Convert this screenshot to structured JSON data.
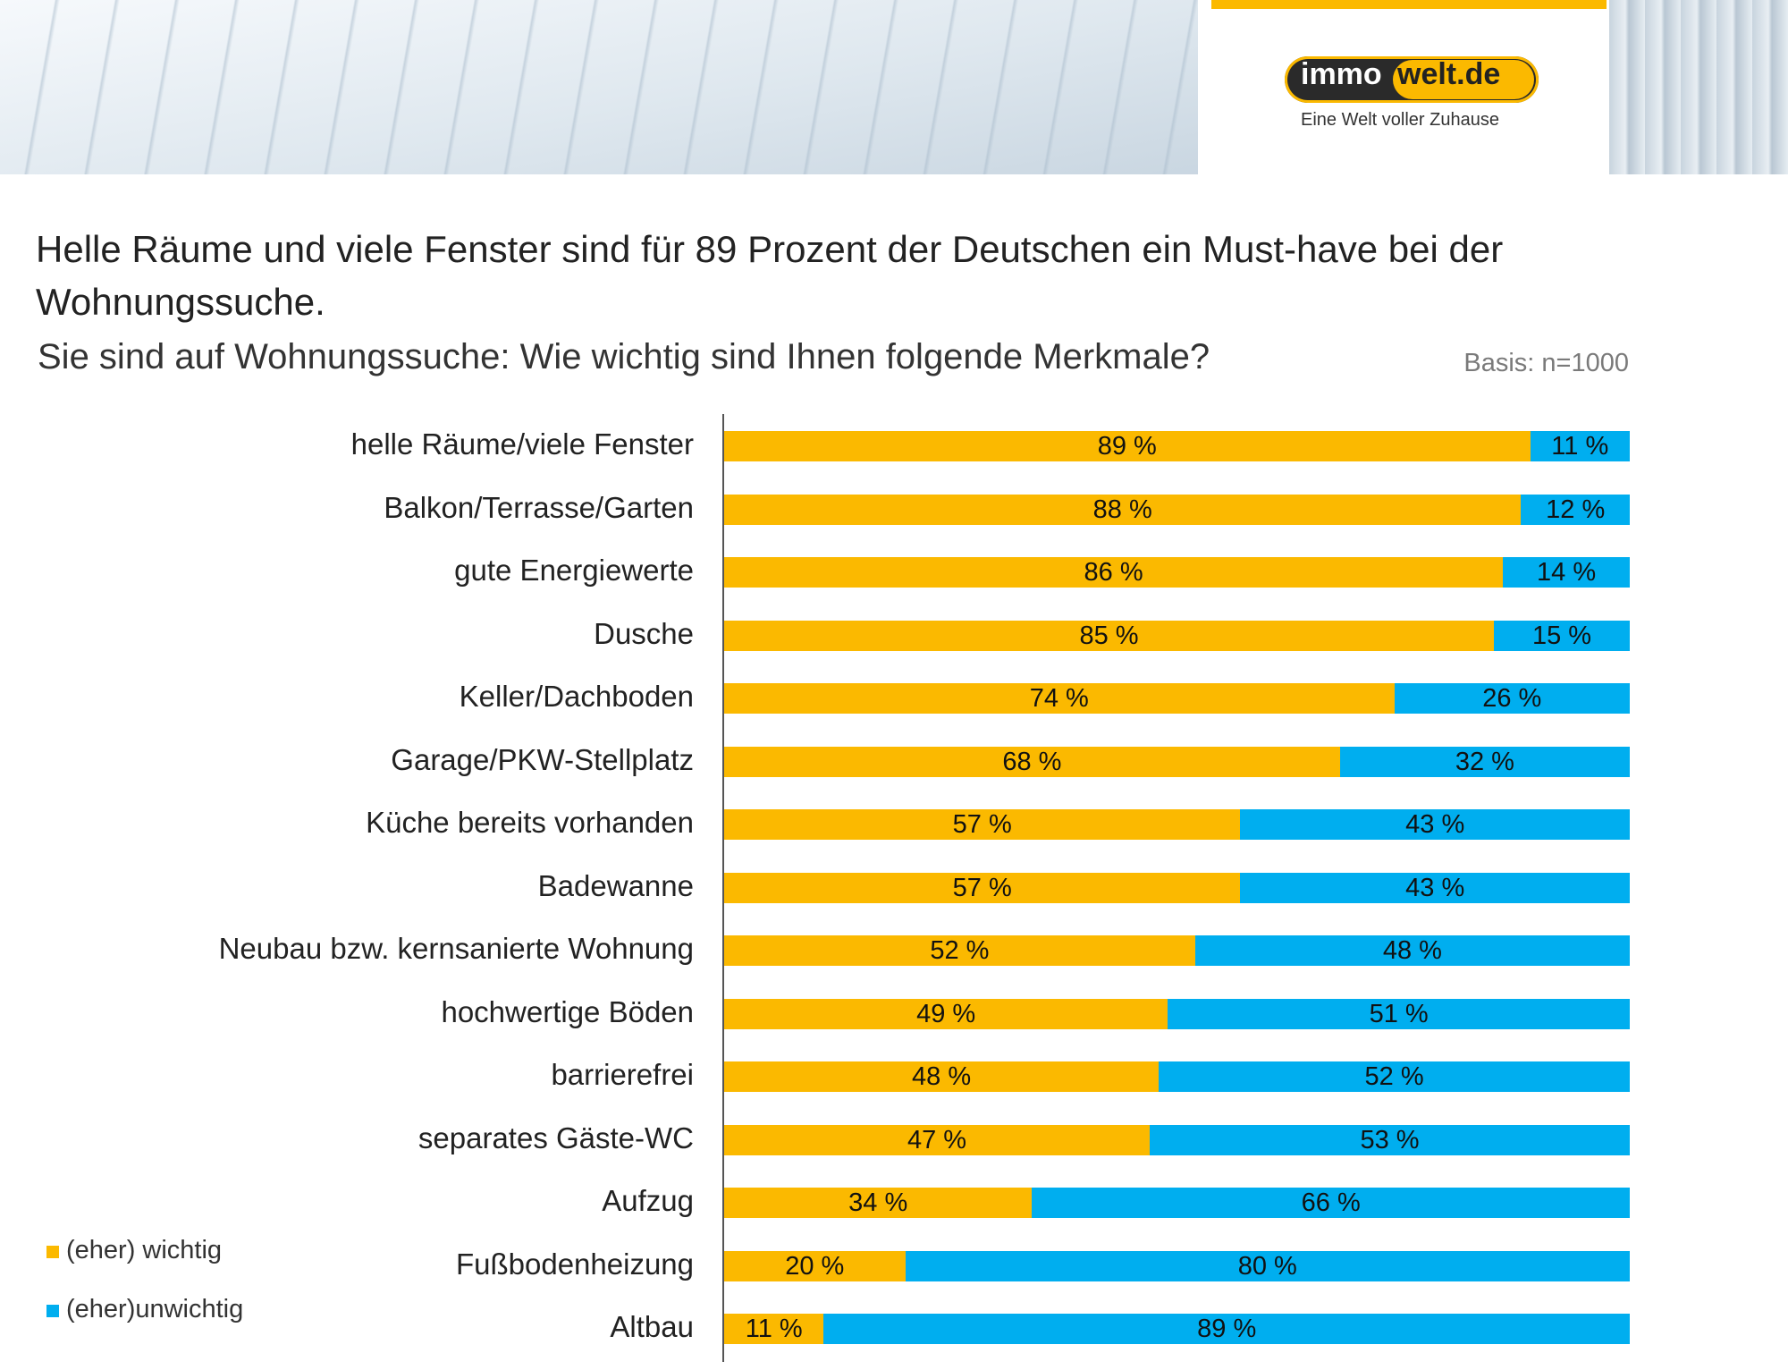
{
  "header": {
    "logo_part1": "immo",
    "logo_part2": "welt.de",
    "tagline": "Eine Welt voller Zuhause"
  },
  "colors": {
    "wichtig": "#fbb900",
    "unwichtig": "#00aeef",
    "accent": "#fbb900"
  },
  "chart_data": {
    "type": "bar",
    "orientation": "horizontal-stacked-100",
    "title": "Helle Räume und viele Fenster sind für 89 Prozent der Deutschen ein Must-have bei der Wohnungssuche.",
    "subtitle": "Sie sind auf Wohnungssuche: Wie wichtig sind Ihnen folgende Merkmale?",
    "basis": "Basis: n=1000",
    "xlim": [
      0,
      100
    ],
    "legend_placement": "bottom-left",
    "categories": [
      "helle Räume/viele Fenster",
      "Balkon/Terrasse/Garten",
      "gute Energiewerte",
      "Dusche",
      "Keller/Dachboden",
      "Garage/PKW-Stellplatz",
      "Küche bereits vorhanden",
      "Badewanne",
      "Neubau bzw. kernsanierte Wohnung",
      "hochwertige Böden",
      "barrierefrei",
      "separates Gäste-WC",
      "Aufzug",
      "Fußbodenheizung",
      "Altbau"
    ],
    "series": [
      {
        "name": "(eher) wichtig",
        "color": "#fbb900",
        "values": [
          89,
          88,
          86,
          85,
          74,
          68,
          57,
          57,
          52,
          49,
          48,
          47,
          34,
          20,
          11
        ]
      },
      {
        "name": "(eher)unwichtig",
        "color": "#00aeef",
        "values": [
          11,
          12,
          14,
          15,
          26,
          32,
          43,
          43,
          48,
          51,
          52,
          53,
          66,
          80,
          89
        ]
      }
    ],
    "value_suffix": " %"
  }
}
